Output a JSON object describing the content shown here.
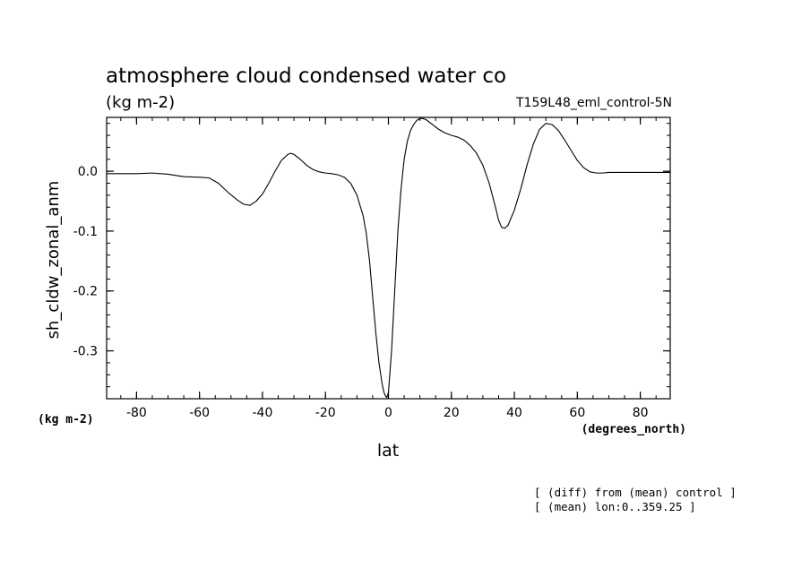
{
  "chart_data": {
    "type": "line",
    "title": "atmosphere cloud condensed water co",
    "units_label": "(kg m-2)",
    "run_label": "T159L48_eml_control-5N",
    "ylabel": "sh_cldw_zonal_anm",
    "xlabel": "lat",
    "x_units": "(degrees_north)",
    "y_units_corner": "(kg m-2)",
    "xlim": [
      -89.5,
      89.5
    ],
    "ylim": [
      -0.38,
      0.09
    ],
    "xticks": [
      -80,
      -60,
      -40,
      -20,
      0,
      20,
      40,
      60,
      80
    ],
    "xtick_labels": [
      "-80",
      "-60",
      "-40",
      "-20",
      "0",
      "20",
      "40",
      "60",
      "80"
    ],
    "yticks": [
      0.0,
      -0.1,
      -0.2,
      -0.3
    ],
    "ytick_labels": [
      "0.0",
      "-0.1",
      "-0.2",
      "-0.3"
    ],
    "grid": false,
    "series": [
      {
        "x": [
          -89.5,
          -80,
          -75,
          -70,
          -65,
          -60,
          -57,
          -54,
          -51,
          -48,
          -46,
          -44,
          -42,
          -40,
          -38,
          -36,
          -34,
          -32,
          -31,
          -30,
          -28,
          -26,
          -24,
          -22,
          -20,
          -18,
          -16,
          -14,
          -12,
          -10,
          -8,
          -7,
          -6,
          -5,
          -4,
          -3,
          -2,
          -1.5,
          -1,
          -0.5,
          0,
          1,
          2,
          3,
          4,
          5,
          6,
          7,
          8,
          9,
          10,
          11,
          12,
          14,
          16,
          18,
          20,
          22,
          24,
          26,
          28,
          30,
          32,
          34,
          35,
          36,
          37,
          38,
          40,
          42,
          44,
          46,
          48,
          50,
          52,
          54,
          56,
          58,
          60,
          62,
          64,
          66,
          68,
          70,
          75,
          80,
          85,
          89.5
        ],
        "y": [
          -0.004,
          -0.004,
          -0.003,
          -0.005,
          -0.009,
          -0.01,
          -0.011,
          -0.02,
          -0.035,
          -0.048,
          -0.055,
          -0.057,
          -0.05,
          -0.038,
          -0.02,
          0.0,
          0.018,
          0.028,
          0.03,
          0.028,
          0.02,
          0.01,
          0.003,
          -0.001,
          -0.003,
          -0.004,
          -0.006,
          -0.01,
          -0.02,
          -0.04,
          -0.075,
          -0.105,
          -0.15,
          -0.21,
          -0.27,
          -0.32,
          -0.355,
          -0.368,
          -0.375,
          -0.378,
          -0.37,
          -0.3,
          -0.2,
          -0.1,
          -0.03,
          0.02,
          0.05,
          0.068,
          0.078,
          0.085,
          0.088,
          0.088,
          0.086,
          0.078,
          0.07,
          0.064,
          0.06,
          0.057,
          0.052,
          0.043,
          0.03,
          0.01,
          -0.02,
          -0.06,
          -0.082,
          -0.094,
          -0.095,
          -0.09,
          -0.065,
          -0.03,
          0.01,
          0.045,
          0.07,
          0.08,
          0.078,
          0.068,
          0.052,
          0.035,
          0.018,
          0.006,
          -0.001,
          -0.003,
          -0.003,
          -0.002,
          -0.002,
          -0.002,
          -0.002,
          -0.002
        ]
      }
    ]
  },
  "footer": {
    "line1": "[ (diff) from (mean) control ]",
    "line2": "[ (mean) lon:0..359.25 ]"
  }
}
